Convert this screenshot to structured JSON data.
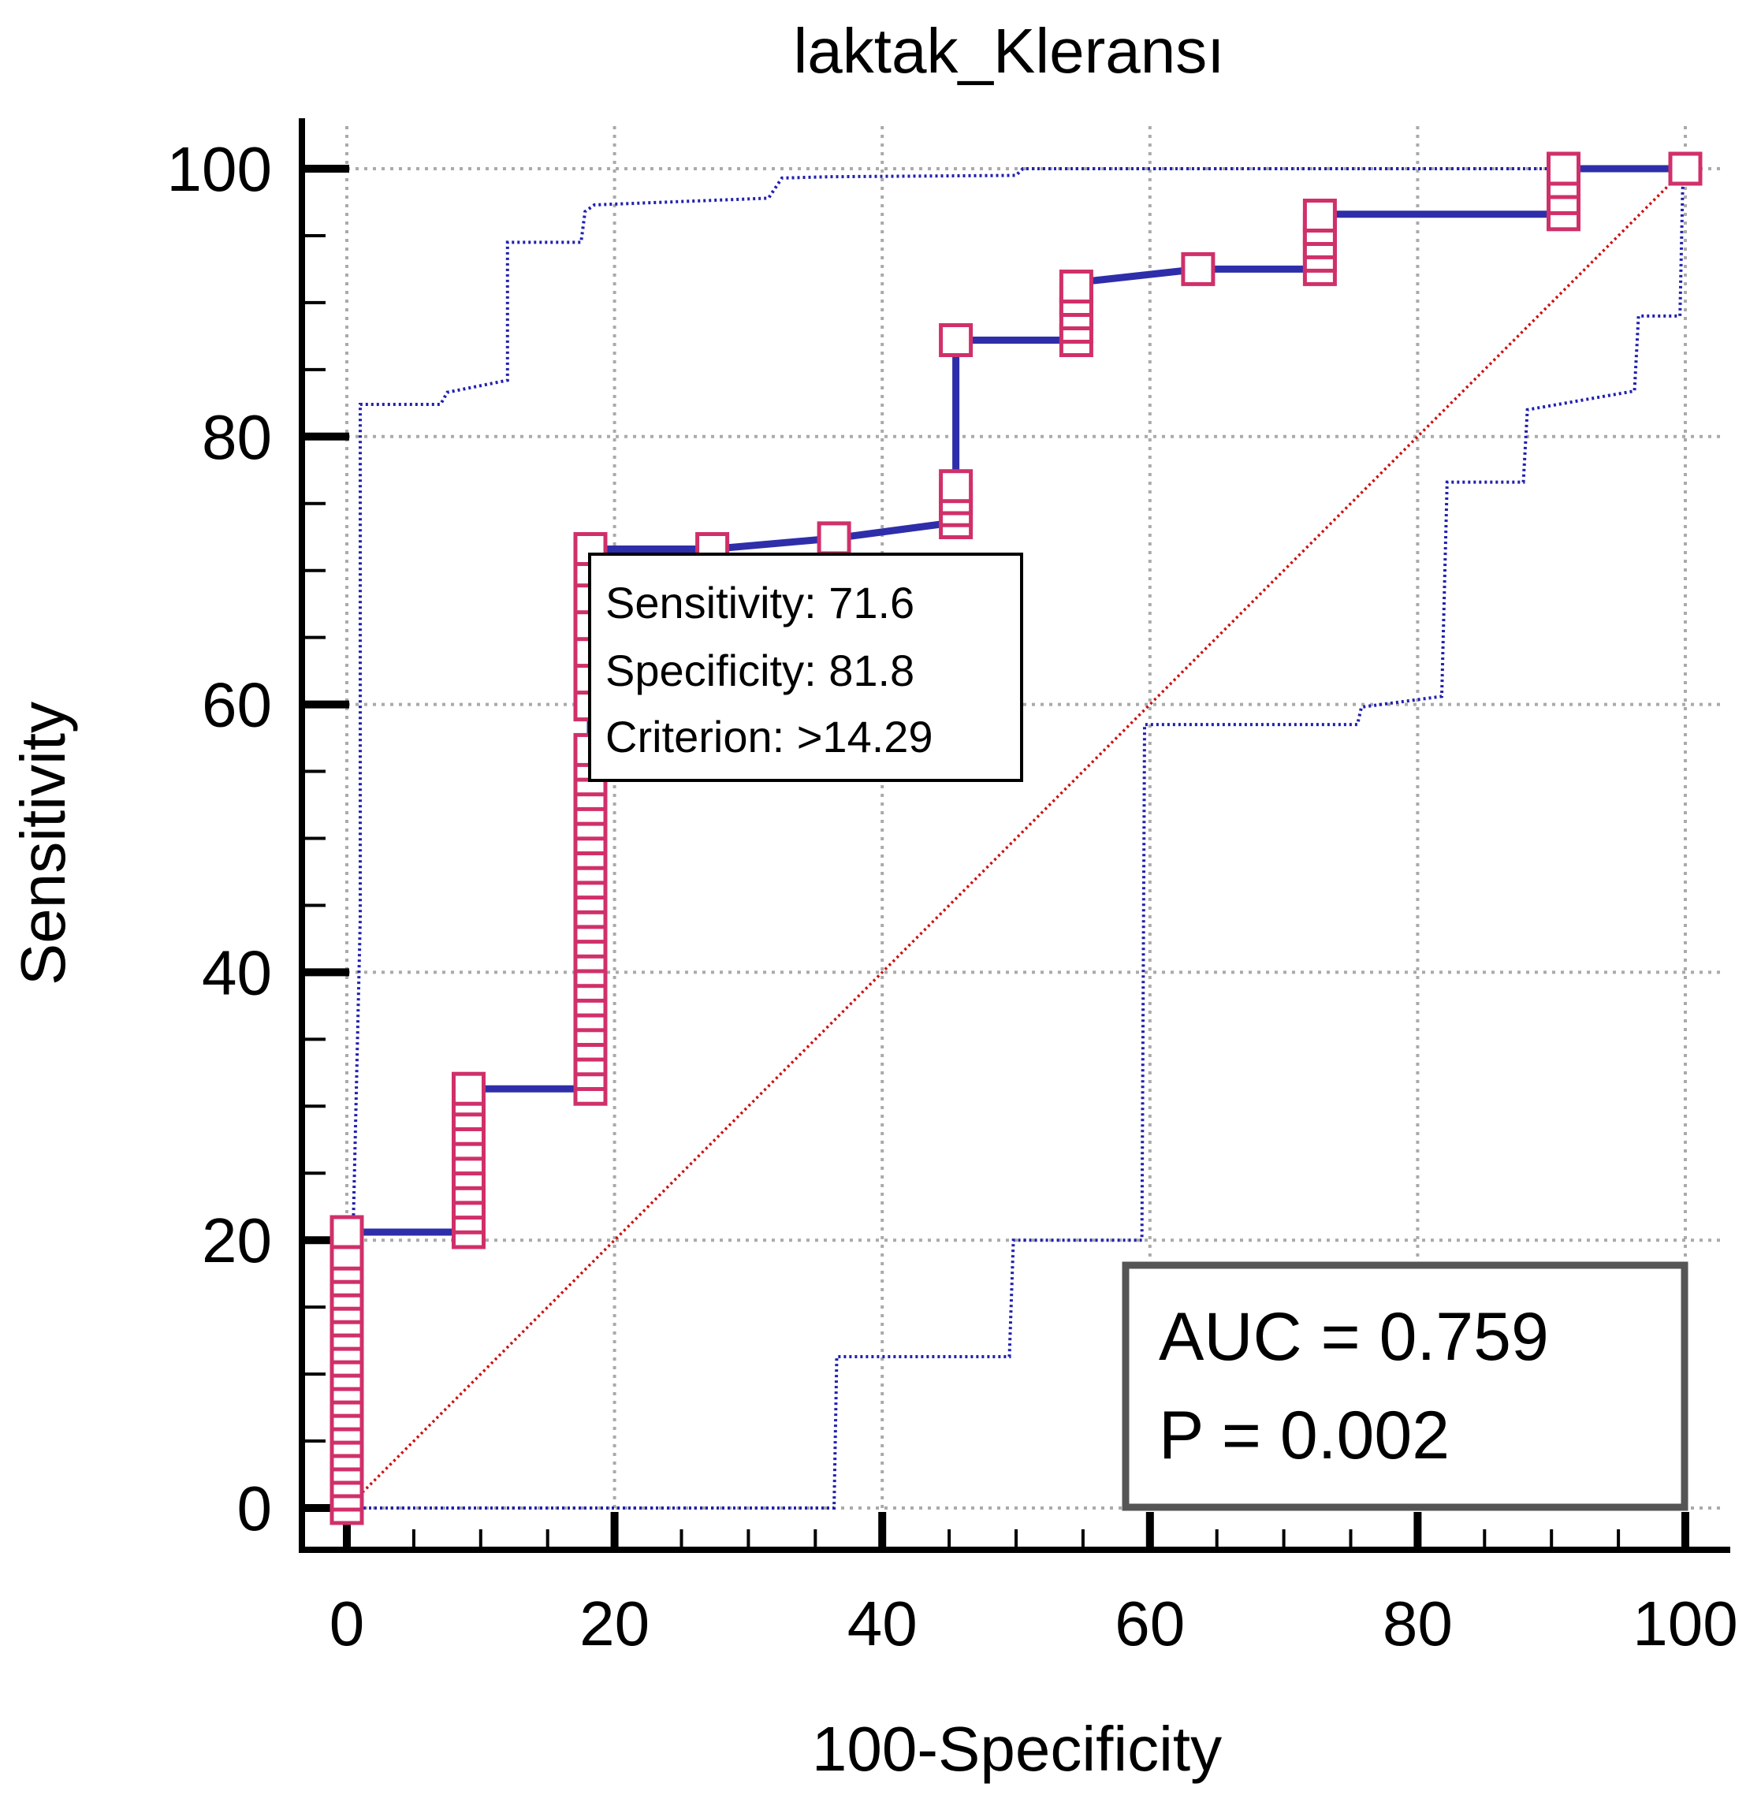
{
  "chart_data": {
    "type": "line",
    "title": "laktak_Kleransı",
    "xlabel": "100-Specificity",
    "ylabel": "Sensitivity",
    "xlim": [
      0,
      100
    ],
    "ylim": [
      0,
      100
    ],
    "grid": true,
    "x_ticks": [
      0,
      20,
      40,
      60,
      80,
      100
    ],
    "y_ticks": [
      0,
      20,
      40,
      60,
      80,
      100
    ],
    "x_tick_labels": [
      "0",
      "20",
      "40",
      "60",
      "80",
      "100"
    ],
    "y_tick_labels": [
      "0",
      "20",
      "40",
      "60",
      "80",
      "100"
    ],
    "colors": {
      "roc": "#2e2eaa",
      "ci": "#2020b0",
      "diagonal": "#cc1111",
      "marker": "#d0306a",
      "grid": "#aaaaaa",
      "axis": "#000000",
      "stat_box": "#555555"
    },
    "series": [
      {
        "name": "ROC curve",
        "x": [
          0,
          0,
          9.1,
          9.1,
          18.2,
          18.2,
          27.3,
          36.4,
          45.5,
          45.5,
          54.5,
          54.5,
          63.6,
          72.7,
          72.7,
          90.9,
          90.9,
          100
        ],
        "y": [
          0,
          20.6,
          20.6,
          31.3,
          31.3,
          71.6,
          71.6,
          72.4,
          73.6,
          87.2,
          87.2,
          91.5,
          92.5,
          92.5,
          96.6,
          96.6,
          100,
          100
        ]
      },
      {
        "name": "Upper confidence bound",
        "x": [
          0,
          1,
          1,
          7,
          7.5,
          12,
          12,
          17.5,
          17.8,
          18.5,
          31.5,
          32.5,
          36,
          50,
          50.5,
          100
        ],
        "y": [
          0,
          44,
          82.4,
          82.4,
          83.3,
          84.2,
          94.5,
          94.5,
          96.8,
          97.3,
          97.8,
          99.3,
          99.4,
          99.5,
          100,
          100
        ]
      },
      {
        "name": "Lower confidence bound",
        "x": [
          0,
          36.4,
          36.6,
          49.5,
          49.8,
          59.4,
          59.6,
          75.5,
          75.8,
          81.8,
          82.2,
          87.9,
          88.2,
          96.2,
          96.5,
          99.6,
          99.8,
          100
        ],
        "y": [
          0,
          0,
          11.3,
          11.3,
          20,
          20,
          58.5,
          58.5,
          59.8,
          60.6,
          76.6,
          76.6,
          82,
          83.4,
          89,
          89,
          98.5,
          100
        ]
      },
      {
        "name": "Reference line",
        "x": [
          0,
          100
        ],
        "y": [
          0,
          100
        ]
      }
    ],
    "markers": [
      {
        "x": 0,
        "y": 0
      },
      {
        "x": 0,
        "y": 1
      },
      {
        "x": 0,
        "y": 2
      },
      {
        "x": 0,
        "y": 3
      },
      {
        "x": 0,
        "y": 4
      },
      {
        "x": 0,
        "y": 5
      },
      {
        "x": 0,
        "y": 6
      },
      {
        "x": 0,
        "y": 7
      },
      {
        "x": 0,
        "y": 8
      },
      {
        "x": 0,
        "y": 9
      },
      {
        "x": 0,
        "y": 10
      },
      {
        "x": 0,
        "y": 11
      },
      {
        "x": 0,
        "y": 12
      },
      {
        "x": 0,
        "y": 13
      },
      {
        "x": 0,
        "y": 14
      },
      {
        "x": 0,
        "y": 15
      },
      {
        "x": 0,
        "y": 16
      },
      {
        "x": 0,
        "y": 17
      },
      {
        "x": 0,
        "y": 18
      },
      {
        "x": 0,
        "y": 19
      },
      {
        "x": 0,
        "y": 20.6
      },
      {
        "x": 9.1,
        "y": 20.6
      },
      {
        "x": 9.1,
        "y": 21.7
      },
      {
        "x": 9.1,
        "y": 22.8
      },
      {
        "x": 9.1,
        "y": 23.9
      },
      {
        "x": 9.1,
        "y": 25
      },
      {
        "x": 9.1,
        "y": 26.1
      },
      {
        "x": 9.1,
        "y": 27.2
      },
      {
        "x": 9.1,
        "y": 28.3
      },
      {
        "x": 9.1,
        "y": 29.4
      },
      {
        "x": 9.1,
        "y": 30.5
      },
      {
        "x": 9.1,
        "y": 31.3
      },
      {
        "x": 18.2,
        "y": 31.3
      },
      {
        "x": 18.2,
        "y": 32.4
      },
      {
        "x": 18.2,
        "y": 33.5
      },
      {
        "x": 18.2,
        "y": 34.6
      },
      {
        "x": 18.2,
        "y": 35.7
      },
      {
        "x": 18.2,
        "y": 36.8
      },
      {
        "x": 18.2,
        "y": 37.9
      },
      {
        "x": 18.2,
        "y": 39
      },
      {
        "x": 18.2,
        "y": 40.1
      },
      {
        "x": 18.2,
        "y": 41.2
      },
      {
        "x": 18.2,
        "y": 42.3
      },
      {
        "x": 18.2,
        "y": 43.4
      },
      {
        "x": 18.2,
        "y": 44.5
      },
      {
        "x": 18.2,
        "y": 45.6
      },
      {
        "x": 18.2,
        "y": 46.7
      },
      {
        "x": 18.2,
        "y": 47.8
      },
      {
        "x": 18.2,
        "y": 48.9
      },
      {
        "x": 18.2,
        "y": 50
      },
      {
        "x": 18.2,
        "y": 51.1
      },
      {
        "x": 18.2,
        "y": 52.2
      },
      {
        "x": 18.2,
        "y": 53.3
      },
      {
        "x": 18.2,
        "y": 54.4
      },
      {
        "x": 18.2,
        "y": 55.5
      },
      {
        "x": 18.2,
        "y": 56.6
      },
      {
        "x": 18.2,
        "y": 60
      },
      {
        "x": 18.2,
        "y": 62
      },
      {
        "x": 18.2,
        "y": 64
      },
      {
        "x": 18.2,
        "y": 66
      },
      {
        "x": 18.2,
        "y": 68
      },
      {
        "x": 18.2,
        "y": 70
      },
      {
        "x": 18.2,
        "y": 71.6
      },
      {
        "x": 27.3,
        "y": 71.6
      },
      {
        "x": 36.4,
        "y": 72.4
      },
      {
        "x": 45.5,
        "y": 73.6
      },
      {
        "x": 45.5,
        "y": 74.5
      },
      {
        "x": 45.5,
        "y": 75.4
      },
      {
        "x": 45.5,
        "y": 76.3
      },
      {
        "x": 45.5,
        "y": 87.2
      },
      {
        "x": 54.5,
        "y": 87.2
      },
      {
        "x": 54.5,
        "y": 88.2
      },
      {
        "x": 54.5,
        "y": 89.2
      },
      {
        "x": 54.5,
        "y": 90.2
      },
      {
        "x": 54.5,
        "y": 91.2
      },
      {
        "x": 63.6,
        "y": 92.5
      },
      {
        "x": 72.7,
        "y": 92.5
      },
      {
        "x": 72.7,
        "y": 93.5
      },
      {
        "x": 72.7,
        "y": 94.5
      },
      {
        "x": 72.7,
        "y": 95.5
      },
      {
        "x": 72.7,
        "y": 96.5
      },
      {
        "x": 90.9,
        "y": 96.6
      },
      {
        "x": 90.9,
        "y": 97.8
      },
      {
        "x": 90.9,
        "y": 99
      },
      {
        "x": 90.9,
        "y": 100
      },
      {
        "x": 100,
        "y": 100
      }
    ],
    "annotation": {
      "lines": [
        "Sensitivity: 71.6",
        "Specificity: 81.8",
        "Criterion: >14.29"
      ],
      "sensitivity": 71.6,
      "specificity": 81.8,
      "criterion": ">14.29"
    },
    "stats": {
      "lines": [
        "AUC = 0.759",
        "P = 0.002"
      ],
      "auc": 0.759,
      "p": 0.002
    }
  }
}
